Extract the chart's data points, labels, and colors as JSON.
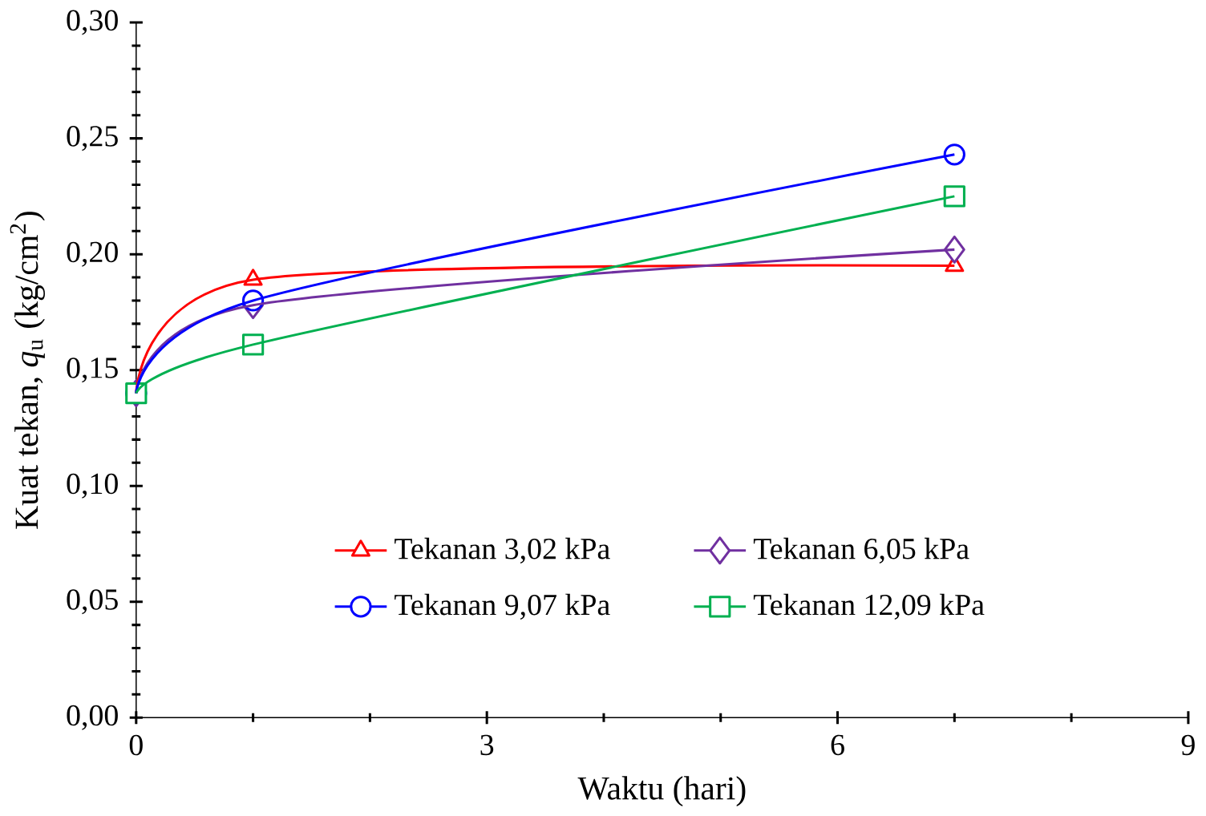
{
  "chart_data": {
    "type": "line",
    "xlabel": "Waktu (hari)",
    "ylabel": "Kuat tekan, *q*$_{u}$ (kg/cm$^{2}$)",
    "x": [
      0,
      1,
      7
    ],
    "series": [
      {
        "name": "Tekanan 3,02 kPa",
        "color": "#ff0000",
        "marker": "triangle",
        "values": [
          0.14,
          0.189,
          0.195
        ]
      },
      {
        "name": "Tekanan 6,05 kPa",
        "color": "#7030a0",
        "marker": "diamond",
        "values": [
          0.14,
          0.178,
          0.202
        ]
      },
      {
        "name": "Tekanan 9,07 kPa",
        "color": "#0000ff",
        "marker": "circle",
        "values": [
          0.14,
          0.18,
          0.243
        ]
      },
      {
        "name": "Tekanan 12,09 kPa",
        "color": "#00b050",
        "marker": "square",
        "values": [
          0.14,
          0.161,
          0.225
        ]
      }
    ],
    "xlim": [
      0,
      9
    ],
    "xticks": [
      0,
      3,
      6,
      9
    ],
    "ylim": [
      0,
      0.3
    ],
    "yticks": [
      {
        "value": 0,
        "label": "0,00"
      },
      {
        "value": 0.05,
        "label": "0,05"
      },
      {
        "value": 0.1,
        "label": "0,10"
      },
      {
        "value": 0.15,
        "label": "0,15"
      },
      {
        "value": 0.2,
        "label": "0,20"
      },
      {
        "value": 0.25,
        "label": "0,25"
      },
      {
        "value": 0.3,
        "label": "0,30"
      }
    ],
    "legend": "bottom",
    "grid": false,
    "line_style": "solid"
  }
}
